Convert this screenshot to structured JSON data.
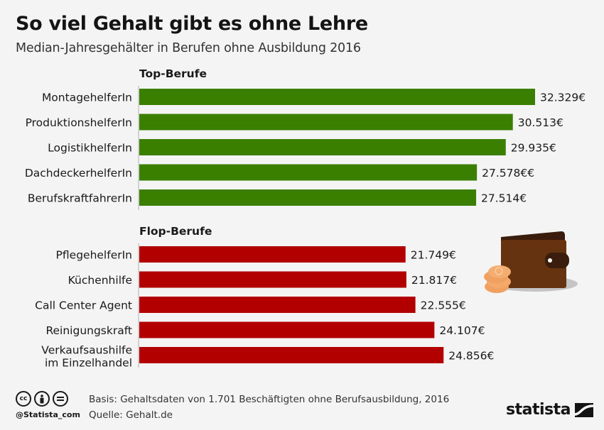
{
  "header": {
    "title": "So viel Gehalt gibt es ohne Lehre",
    "subtitle": "Median-Jahresgehälter in Berufen ohne Ausbildung 2016"
  },
  "chart_data": {
    "type": "bar",
    "orientation": "horizontal",
    "title": "So viel Gehalt gibt es ohne Lehre",
    "subtitle": "Median-Jahresgehälter in Berufen ohne Ausbildung 2016",
    "xlabel": "",
    "ylabel": "",
    "unit": "€",
    "grid": false,
    "legend": "none",
    "groups": [
      {
        "name": "Top-Berufe",
        "color": "#3b7f00",
        "watermark_color": "#64a023",
        "watermark_icon": "thumbs-up-icon",
        "categories": [
          "MontagehelferIn",
          "ProduktionshelferIn",
          "LogistikhelferIn",
          "DachdeckerhelferIn",
          "BerufskraftfahrerIn"
        ],
        "values": [
          32329,
          30513,
          29935,
          27578,
          27514
        ],
        "value_labels": [
          "32.329€",
          "30.513€",
          "29.935€",
          "27.578€€",
          "27.514€"
        ]
      },
      {
        "name": "Flop-Berufe",
        "color": "#b20000",
        "watermark_color": "#c61a12",
        "watermark_icon": "thumbs-down-icon",
        "categories": [
          "PflegehelferIn",
          "Küchenhilfe",
          "Call Center Agent",
          "Reinigungskraft",
          "Verkaufsaushilfe im Einzelhandel"
        ],
        "category_lines": [
          [
            "PflegehelferIn"
          ],
          [
            "Küchenhilfe"
          ],
          [
            "Call Center Agent"
          ],
          [
            "Reinigungskraft"
          ],
          [
            "Verkaufsaushilfe",
            "im Einzelhandel"
          ]
        ],
        "values": [
          21749,
          21817,
          22555,
          24107,
          24856
        ],
        "value_labels": [
          "21.749€",
          "21.817€",
          "22.555€",
          "24.107€",
          "24.856€"
        ]
      }
    ],
    "xlim": [
      0,
      32329
    ]
  },
  "footer": {
    "basis": "Basis: Gehaltsdaten von 1.701 Beschäftigten ohne Berufsausbildung, 2016",
    "source": "Quelle: Gehalt.de",
    "handle": "@Statista_com",
    "license_icons": [
      "cc-icon",
      "by-icon",
      "nd-icon"
    ],
    "logo_text": "statista"
  },
  "colors": {
    "background": "#f4f4f4",
    "top_bar": "#3b7f00",
    "flop_bar": "#b20000"
  }
}
